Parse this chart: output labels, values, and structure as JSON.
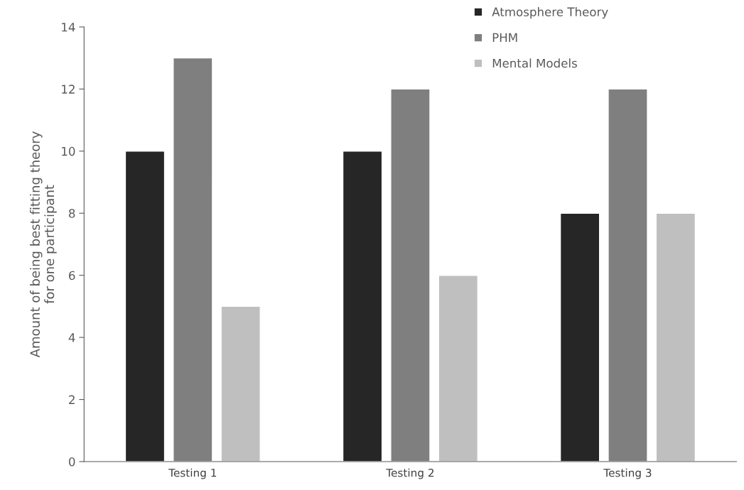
{
  "chart_data": {
    "type": "bar",
    "ylabel": "Amount of being best fitting theory\nfor one participant",
    "categories": [
      "Testing 1",
      "Testing 2",
      "Testing 3"
    ],
    "series": [
      {
        "name": "Atmosphere Theory",
        "color": "#262626",
        "values": [
          10,
          10,
          8
        ]
      },
      {
        "name": "PHM",
        "color": "#7f7f7f",
        "values": [
          13,
          12,
          12
        ]
      },
      {
        "name": "Mental Models",
        "color": "#bfbfbf",
        "values": [
          5,
          6,
          8
        ]
      }
    ],
    "ylim": [
      0,
      14
    ],
    "yticks": [
      0,
      2,
      4,
      6,
      8,
      10,
      12,
      14
    ],
    "grid": false,
    "legend": "top right"
  }
}
